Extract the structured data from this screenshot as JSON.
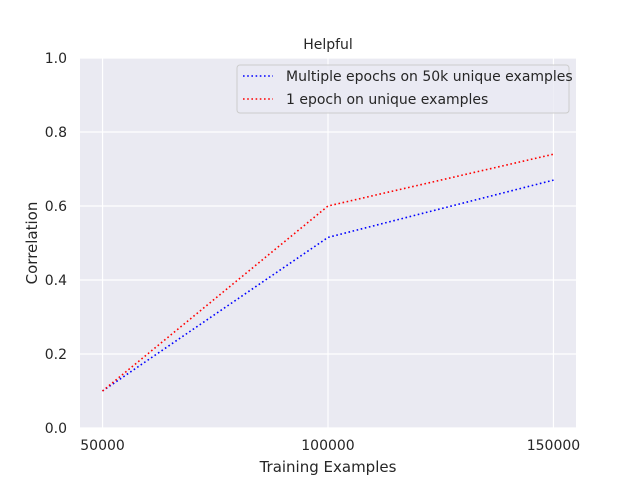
{
  "chart_data": {
    "type": "line",
    "title": "Helpful",
    "xlabel": "Training Examples",
    "ylabel": "Correlation",
    "x": [
      50000,
      100000,
      150000
    ],
    "xticks": [
      50000,
      100000,
      150000
    ],
    "xtick_labels": [
      "50000",
      "100000",
      "150000"
    ],
    "yticks": [
      0.0,
      0.2,
      0.4,
      0.6,
      0.8,
      1.0
    ],
    "ytick_labels": [
      "0.0",
      "0.2",
      "0.4",
      "0.6",
      "0.8",
      "1.0"
    ],
    "xlim": [
      45000,
      155000
    ],
    "ylim": [
      0.0,
      1.0
    ],
    "grid": true,
    "legend_position": "top-right",
    "series": [
      {
        "name": "Multiple epochs on 50k unique examples",
        "values": [
          0.1,
          0.515,
          0.67
        ],
        "color": "#0000ff",
        "style": "dotted"
      },
      {
        "name": "1 epoch on unique examples",
        "values": [
          0.1,
          0.6,
          0.74
        ],
        "color": "#ff0000",
        "style": "dotted"
      }
    ]
  }
}
